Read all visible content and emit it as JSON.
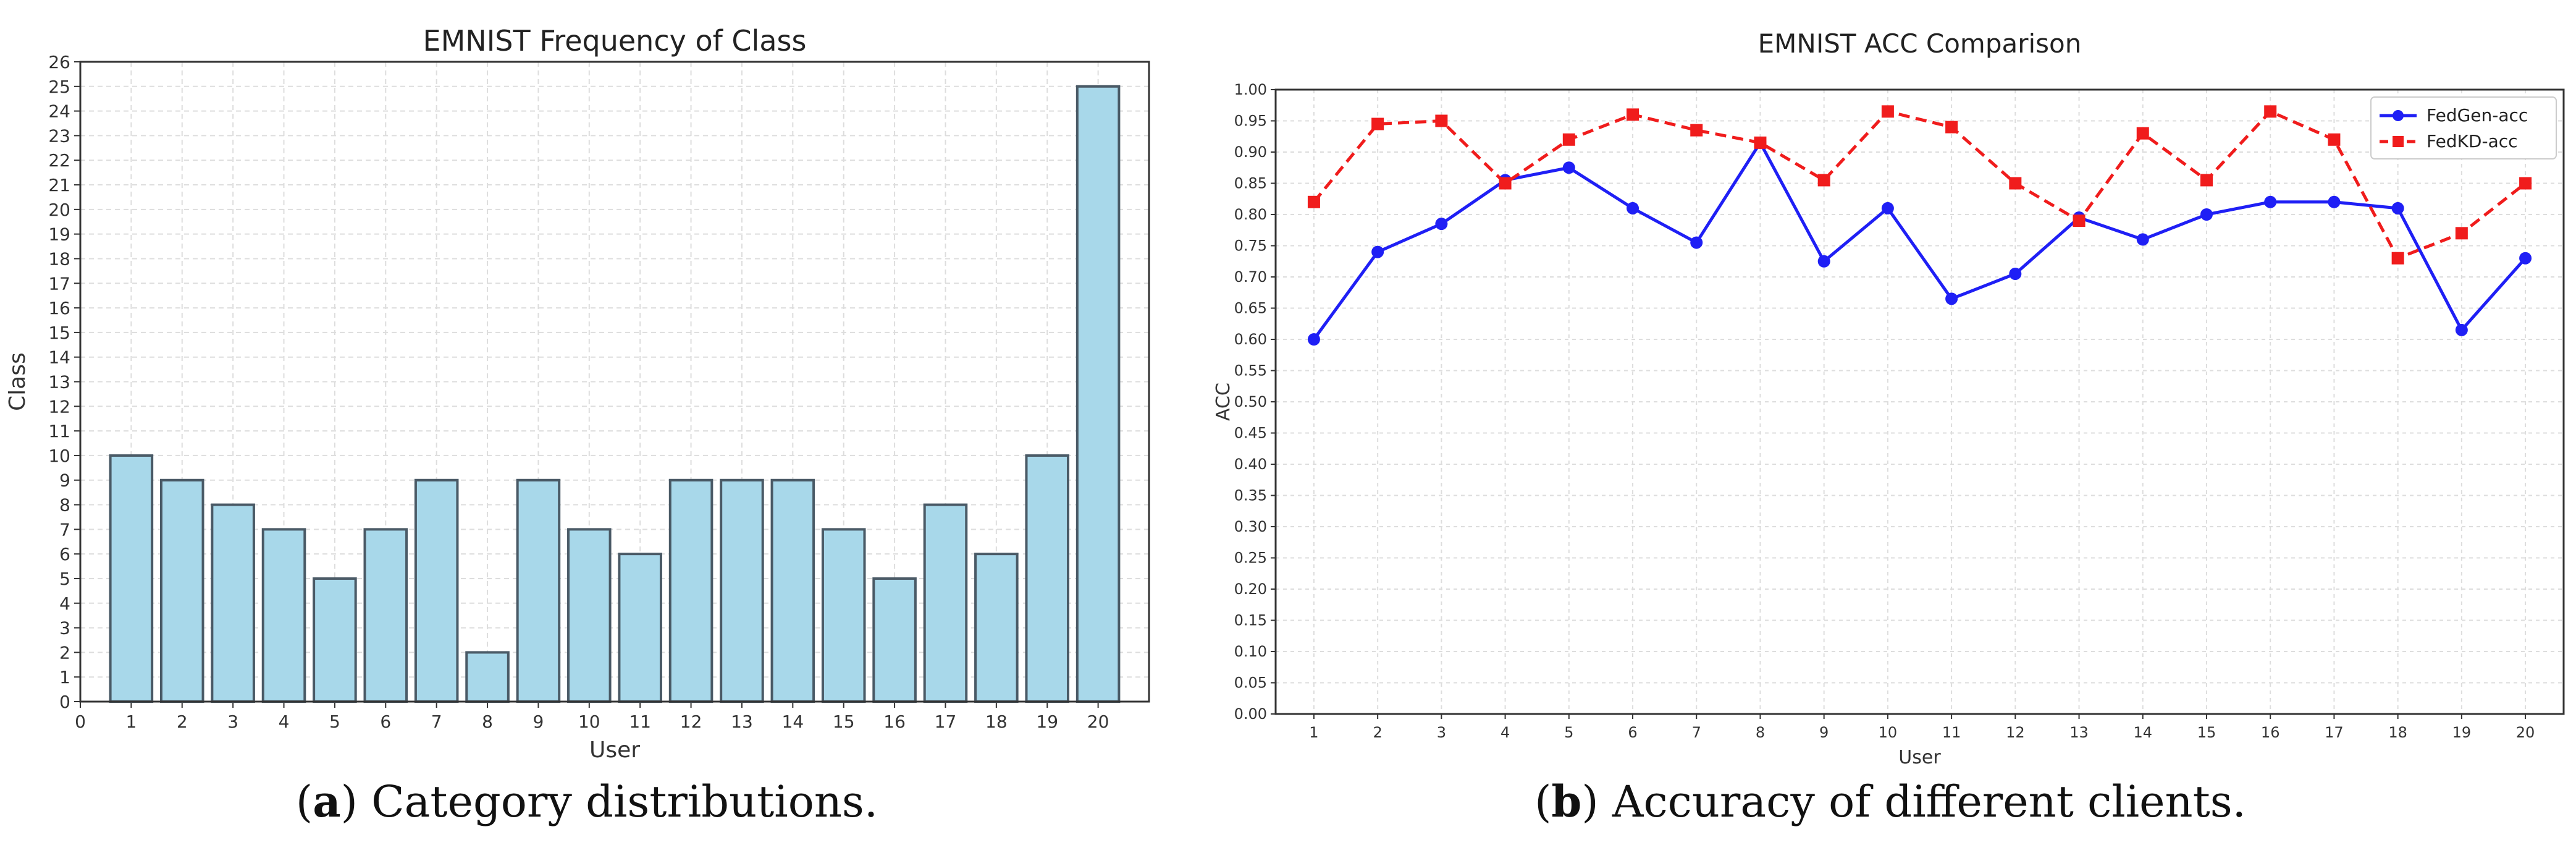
{
  "captions": {
    "a": {
      "letter": "a",
      "text": "Category distributions."
    },
    "b": {
      "letter": "b",
      "text": "Accuracy of different clients."
    }
  },
  "colors": {
    "bar_fill": "#a8d8ea",
    "bar_edge": "#4a5a66",
    "grid": "#dddddd",
    "line_blue": "#1f1ff5",
    "line_red": "#f01c1c"
  },
  "chart_data": [
    {
      "type": "bar",
      "title": "EMNIST Frequency of Class",
      "xlabel": "User",
      "ylabel": "Class",
      "categories": [
        "1",
        "2",
        "3",
        "4",
        "5",
        "6",
        "7",
        "8",
        "9",
        "10",
        "11",
        "12",
        "13",
        "14",
        "15",
        "16",
        "17",
        "18",
        "19",
        "20"
      ],
      "values": [
        10,
        9,
        8,
        7,
        5,
        7,
        9,
        2,
        9,
        7,
        6,
        9,
        9,
        9,
        7,
        5,
        8,
        6,
        10,
        25
      ],
      "xlim": [
        0,
        21
      ],
      "xticks": [
        "0",
        "1",
        "2",
        "3",
        "4",
        "5",
        "6",
        "7",
        "8",
        "9",
        "10",
        "11",
        "12",
        "13",
        "14",
        "15",
        "16",
        "17",
        "18",
        "19",
        "20"
      ],
      "ylim": [
        0,
        26
      ],
      "yticks": [
        "0",
        "1",
        "2",
        "3",
        "4",
        "5",
        "6",
        "7",
        "8",
        "9",
        "10",
        "11",
        "12",
        "13",
        "14",
        "15",
        "16",
        "17",
        "18",
        "19",
        "20",
        "21",
        "22",
        "23",
        "24",
        "25",
        "26"
      ],
      "grid": true
    },
    {
      "type": "line",
      "title": "EMNIST ACC Comparison",
      "xlabel": "User",
      "ylabel": "ACC",
      "x": [
        "1",
        "2",
        "3",
        "4",
        "5",
        "6",
        "7",
        "8",
        "9",
        "10",
        "11",
        "12",
        "13",
        "14",
        "15",
        "16",
        "17",
        "18",
        "19",
        "20"
      ],
      "ylim": [
        0,
        1
      ],
      "yticks": [
        "0.00",
        "0.05",
        "0.10",
        "0.15",
        "0.20",
        "0.25",
        "0.30",
        "0.35",
        "0.40",
        "0.45",
        "0.50",
        "0.55",
        "0.60",
        "0.65",
        "0.70",
        "0.75",
        "0.80",
        "0.85",
        "0.90",
        "0.95",
        "1.00"
      ],
      "grid": true,
      "legend_position": "top-right",
      "series": [
        {
          "name": "FedGen-acc",
          "style": "solid",
          "marker": "circle",
          "values": [
            0.6,
            0.74,
            0.785,
            0.855,
            0.875,
            0.81,
            0.755,
            0.915,
            0.725,
            0.81,
            0.665,
            0.705,
            0.795,
            0.76,
            0.8,
            0.82,
            0.82,
            0.81,
            0.615,
            0.73
          ]
        },
        {
          "name": "FedKD-acc",
          "style": "dashed",
          "marker": "square",
          "values": [
            0.82,
            0.945,
            0.95,
            0.85,
            0.92,
            0.96,
            0.935,
            0.915,
            0.855,
            0.965,
            0.94,
            0.85,
            0.79,
            0.93,
            0.855,
            0.965,
            0.92,
            0.73,
            0.77,
            0.85
          ]
        }
      ]
    }
  ]
}
